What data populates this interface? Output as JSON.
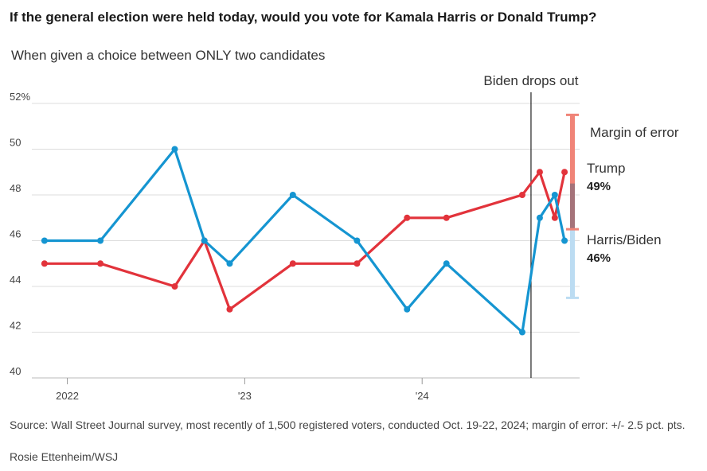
{
  "header": {
    "title": "If the general election were held today, would you vote for Kamala Harris or Donald Trump?",
    "subtitle": "When given a choice between ONLY two candidates"
  },
  "footer": {
    "source": "Source: Wall Street Journal survey, most recently of 1,500 registered voters, conducted Oct. 19-22, 2024; margin of error: +/- 2.5 pct. pts.",
    "credit": "Rosie Ettenheim/WSJ"
  },
  "chart_data": {
    "type": "line",
    "title": "If the general election were held today, would you vote for Kamala Harris or Donald Trump?",
    "subtitle": "When given a choice between ONLY two candidates",
    "ylim": [
      40,
      52
    ],
    "y_ticks": [
      40,
      42,
      44,
      46,
      48,
      50,
      52
    ],
    "y_tick_labels": [
      "40",
      "42",
      "44",
      "46",
      "48",
      "50",
      "52%"
    ],
    "xlim": [
      "2021-10-20",
      "2024-11-20"
    ],
    "x_ticks": [
      {
        "date": "2022-01-01",
        "label": "2022"
      },
      {
        "date": "2023-01-01",
        "label": "'23"
      },
      {
        "date": "2024-01-01",
        "label": "'24"
      }
    ],
    "grid": true,
    "series": [
      {
        "name": "Trump",
        "color": "#e2333b",
        "end_label": "49%",
        "x": [
          "2021-11-15",
          "2022-03-10",
          "2022-08-10",
          "2022-10-10",
          "2022-12-01",
          "2023-04-10",
          "2023-08-20",
          "2023-12-01",
          "2024-02-20",
          "2024-07-25",
          "2024-08-30",
          "2024-09-30",
          "2024-10-20"
        ],
        "values": [
          45,
          45,
          44,
          46,
          43,
          45,
          45,
          47,
          47,
          48,
          49,
          47,
          49
        ]
      },
      {
        "name": "Harris/Biden",
        "color": "#1595d1",
        "end_label": "46%",
        "x": [
          "2021-11-15",
          "2022-03-10",
          "2022-08-10",
          "2022-10-10",
          "2022-12-01",
          "2023-04-10",
          "2023-08-20",
          "2023-12-01",
          "2024-02-20",
          "2024-07-25",
          "2024-08-30",
          "2024-09-30",
          "2024-10-20"
        ],
        "values": [
          46,
          46,
          50,
          46,
          45,
          48,
          46,
          43,
          45,
          42,
          47,
          48,
          46
        ]
      }
    ],
    "event": {
      "date": "2024-08-12",
      "label": "Biden drops out"
    },
    "margin_of_error": {
      "label": "Margin of error",
      "value": 2.5,
      "trump_range": [
        46.5,
        51.5
      ],
      "harris_range": [
        43.5,
        48.5
      ],
      "trump_color": "#f08478",
      "harris_color": "#bcdcf2",
      "overlap_color": "#a5737a"
    }
  }
}
